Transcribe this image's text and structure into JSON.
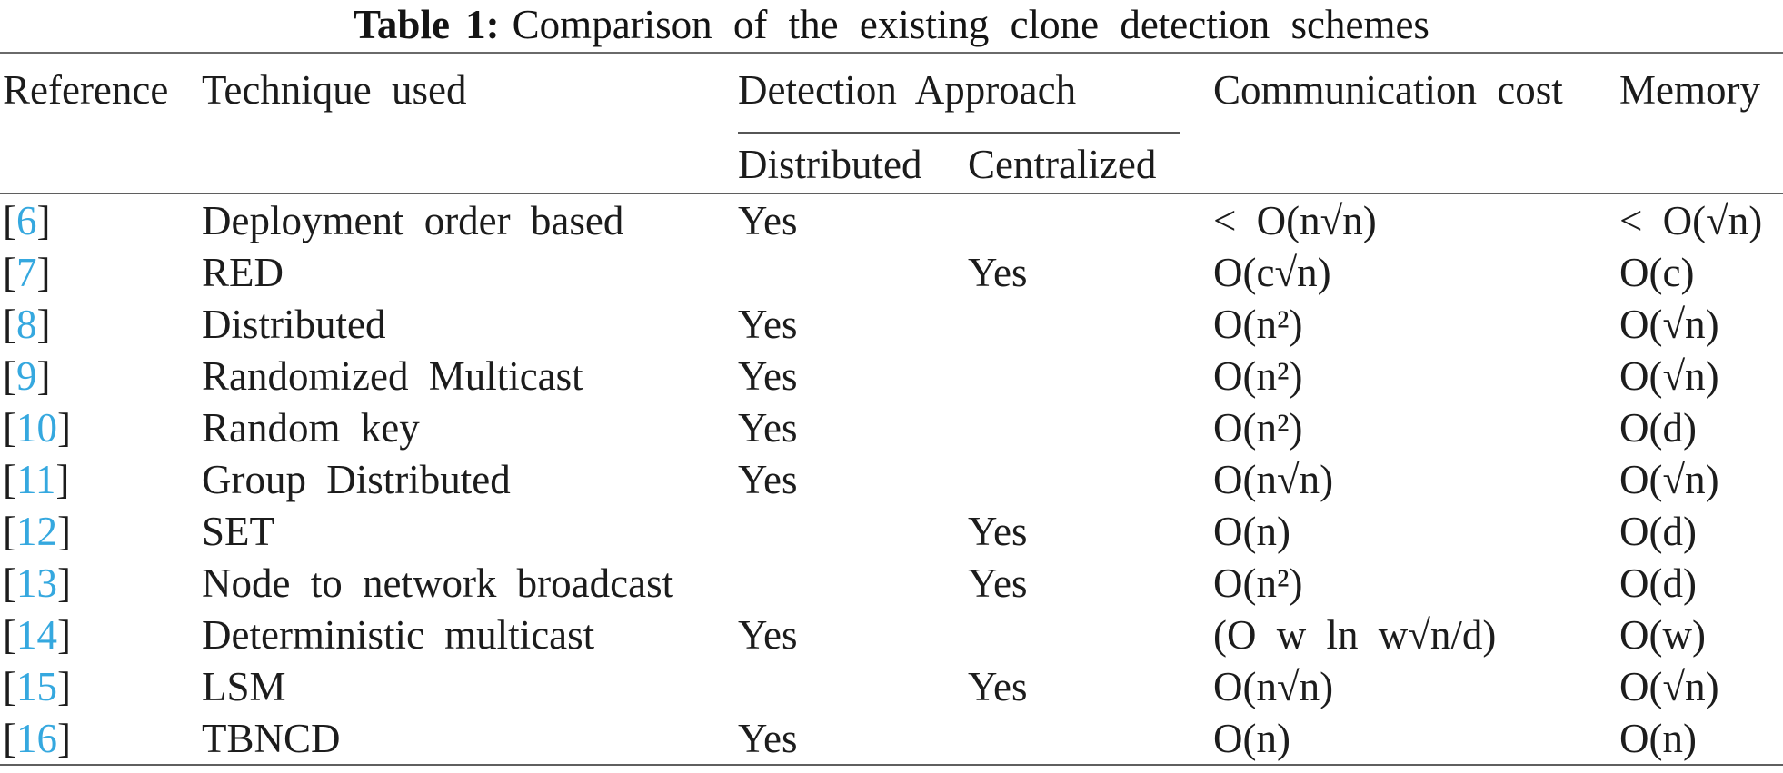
{
  "caption": {
    "label": "Table 1:",
    "text": "Comparison of the existing clone detection schemes"
  },
  "colors": {
    "citation_blue": "#35a8df",
    "rule_gray": "#5f5f5f",
    "text": "#1c1c1c"
  },
  "table": {
    "bracket_open": "[",
    "bracket_close": "]",
    "headers": {
      "reference": "Reference",
      "technique": "Technique used",
      "detection_approach": "Detection Approach",
      "distributed": "Distributed",
      "centralized": "Centralized",
      "communication_cost": "Communication cost",
      "memory": "Memory"
    },
    "rows": [
      {
        "ref": "6",
        "technique": "Deployment order based",
        "distributed": "Yes",
        "centralized": "",
        "communication": "< O(n√n)",
        "memory": "< O(√n)"
      },
      {
        "ref": "7",
        "technique": "RED",
        "distributed": "",
        "centralized": "Yes",
        "communication": "O(c√n)",
        "memory": "O(c)"
      },
      {
        "ref": "8",
        "technique": "Distributed",
        "distributed": "Yes",
        "centralized": "",
        "communication": "O(n²)",
        "memory": "O(√n)"
      },
      {
        "ref": "9",
        "technique": "Randomized Multicast",
        "distributed": "Yes",
        "centralized": "",
        "communication": "O(n²)",
        "memory": "O(√n)"
      },
      {
        "ref": "10",
        "technique": "Random key",
        "distributed": "Yes",
        "centralized": "",
        "communication": "O(n²)",
        "memory": "O(d)"
      },
      {
        "ref": "11",
        "technique": "Group Distributed",
        "distributed": "Yes",
        "centralized": "",
        "communication": "O(n√n)",
        "memory": "O(√n)"
      },
      {
        "ref": "12",
        "technique": "SET",
        "distributed": "",
        "centralized": "Yes",
        "communication": "O(n)",
        "memory": "O(d)"
      },
      {
        "ref": "13",
        "technique": "Node to network broadcast",
        "distributed": "",
        "centralized": "Yes",
        "communication": "O(n²)",
        "memory": "O(d)"
      },
      {
        "ref": "14",
        "technique": "Deterministic multicast",
        "distributed": "Yes",
        "centralized": "",
        "communication": "(O w ln w√n/d)",
        "memory": "O(w)"
      },
      {
        "ref": "15",
        "technique": "LSM",
        "distributed": "",
        "centralized": "Yes",
        "communication": "O(n√n)",
        "memory": "O(√n)"
      },
      {
        "ref": "16",
        "technique": "TBNCD",
        "distributed": "Yes",
        "centralized": "",
        "communication": "O(n)",
        "memory": "O(n)"
      }
    ]
  }
}
